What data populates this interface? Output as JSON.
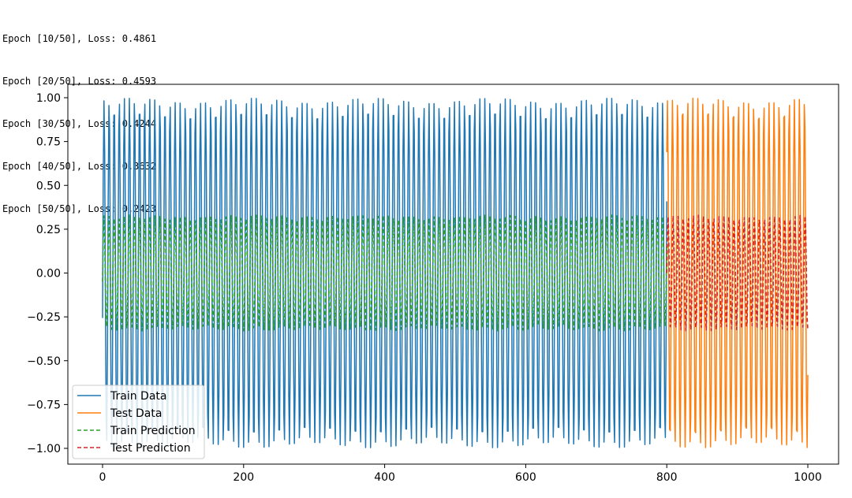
{
  "log": {
    "lines": [
      "Epoch [10/50], Loss: 0.4861",
      "Epoch [20/50], Loss: 0.4593",
      "Epoch [30/50], Loss: 0.4244",
      "Epoch [40/50], Loss: 0.3632",
      "Epoch [50/50], Loss: 0.2423"
    ]
  },
  "chart_data": {
    "type": "line",
    "title": "",
    "xlabel": "",
    "ylabel": "",
    "xlim": [
      -45,
      1012
    ],
    "ylim": [
      -1.1,
      1.08
    ],
    "x_ticks": [
      0,
      200,
      400,
      600,
      800,
      1000
    ],
    "x_tick_labels": [
      "0",
      "200",
      "400",
      "600",
      "800",
      "1000"
    ],
    "y_ticks": [
      1.0,
      0.75,
      0.5,
      0.25,
      0.0,
      -0.25,
      -0.5,
      -0.75,
      -1.0
    ],
    "y_tick_labels": [
      "1.00",
      "0.75",
      "0.50",
      "0.25",
      "0.00",
      "−0.25",
      "−0.50",
      "−0.75",
      "−1.00"
    ],
    "legend_position": "lower-left",
    "grid": false,
    "series": [
      {
        "name": "Train Data",
        "color": "#1f77b4",
        "style": "solid",
        "x_range": [
          0,
          800
        ],
        "formula": "sin-like oscillation",
        "amplitude": 1.0,
        "period_points": 7.2,
        "start_value": -0.26
      },
      {
        "name": "Test Data",
        "color": "#ff7f0e",
        "style": "solid",
        "x_range": [
          800,
          1000
        ],
        "formula": "sin-like oscillation",
        "amplitude": 1.0,
        "period_points": 7.2,
        "start_value": 0.7
      },
      {
        "name": "Train Prediction",
        "color": "#2ca02c",
        "style": "dashed",
        "x_range": [
          0,
          800
        ],
        "formula": "sin-like oscillation",
        "amplitude": 0.33,
        "period_points": 7.2,
        "start_value": -0.05
      },
      {
        "name": "Test Prediction",
        "color": "#d62728",
        "style": "dashed",
        "x_range": [
          800,
          1000
        ],
        "formula": "sin-like oscillation",
        "amplitude": 0.33,
        "period_points": 7.2,
        "start_value": 0.0
      }
    ]
  }
}
